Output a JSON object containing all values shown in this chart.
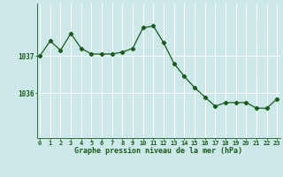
{
  "hours": [
    0,
    1,
    2,
    3,
    4,
    5,
    6,
    7,
    8,
    9,
    10,
    11,
    12,
    13,
    14,
    15,
    16,
    17,
    18,
    19,
    20,
    21,
    22,
    23
  ],
  "pressure": [
    1037.0,
    1037.4,
    1037.15,
    1037.6,
    1037.2,
    1037.05,
    1037.05,
    1037.05,
    1037.1,
    1037.2,
    1037.75,
    1037.8,
    1037.35,
    1036.8,
    1036.45,
    1036.15,
    1035.9,
    1035.65,
    1035.75,
    1035.75,
    1035.75,
    1035.6,
    1035.6,
    1035.85
  ],
  "line_color": "#1a5c1a",
  "marker": "D",
  "marker_size": 2.2,
  "bg_color": "#cce8e8",
  "grid_color": "#ffffff",
  "axis_label_color": "#1a5c1a",
  "tick_color": "#1a5c1a",
  "xlabel": "Graphe pression niveau de la mer (hPa)",
  "ylim_min": 1034.8,
  "ylim_max": 1038.4,
  "xlim_min": -0.3,
  "xlim_max": 23.3
}
